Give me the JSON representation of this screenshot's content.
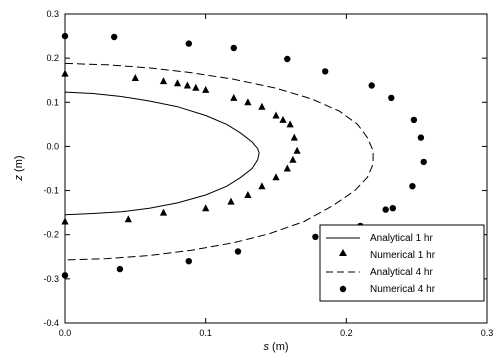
{
  "chart_data": {
    "type": "scatter",
    "title": "",
    "xlabel": {
      "var": "s",
      "unit": " (m)"
    },
    "ylabel": {
      "var": "z",
      "unit": " (m)"
    },
    "xlim": [
      0,
      0.3
    ],
    "ylim": [
      -0.4,
      0.3
    ],
    "x_ticks": [
      "0.0",
      "0.1",
      "0.2",
      "0.3"
    ],
    "y_ticks": [
      "-0.4",
      "-0.3",
      "-0.2",
      "-0.1",
      "0.0",
      "0.1",
      "0.2",
      "0.3"
    ],
    "x_tick_values": [
      0,
      0.1,
      0.2,
      0.3
    ],
    "y_tick_values": [
      -0.4,
      -0.3,
      -0.2,
      -0.1,
      0.0,
      0.1,
      0.2,
      0.3
    ],
    "grid": false,
    "legend_position": "bottom-right",
    "series": [
      {
        "name": "Analytical 1 hr",
        "style": "solid-line",
        "x": [
          0.0,
          0.02,
          0.04,
          0.06,
          0.08,
          0.1,
          0.115,
          0.125,
          0.133,
          0.137,
          0.138,
          0.137,
          0.133,
          0.125,
          0.115,
          0.1,
          0.08,
          0.06,
          0.04,
          0.02,
          0.0
        ],
        "y": [
          0.123,
          0.12,
          0.113,
          0.103,
          0.09,
          0.07,
          0.05,
          0.03,
          0.01,
          -0.005,
          -0.015,
          -0.03,
          -0.05,
          -0.07,
          -0.09,
          -0.11,
          -0.128,
          -0.14,
          -0.148,
          -0.152,
          -0.155
        ]
      },
      {
        "name": "Numerical 1 hr",
        "style": "triangle-marker",
        "x": [
          0.0,
          0.05,
          0.07,
          0.08,
          0.087,
          0.093,
          0.1,
          0.12,
          0.13,
          0.14,
          0.15,
          0.155,
          0.16,
          0.163,
          0.165,
          0.162,
          0.158,
          0.15,
          0.14,
          0.13,
          0.118,
          0.1,
          0.07,
          0.045,
          0.0
        ],
        "y": [
          0.165,
          0.155,
          0.148,
          0.143,
          0.138,
          0.133,
          0.128,
          0.11,
          0.1,
          0.09,
          0.07,
          0.06,
          0.05,
          0.02,
          -0.01,
          -0.03,
          -0.05,
          -0.07,
          -0.09,
          -0.11,
          -0.125,
          -0.14,
          -0.15,
          -0.165,
          -0.17
        ]
      },
      {
        "name": "Analytical 4 hr",
        "style": "dashed-line",
        "x": [
          0.0,
          0.03,
          0.06,
          0.09,
          0.12,
          0.15,
          0.175,
          0.195,
          0.208,
          0.215,
          0.219,
          0.219,
          0.215,
          0.206,
          0.19,
          0.17,
          0.145,
          0.12,
          0.09,
          0.06,
          0.03,
          0.0
        ],
        "y": [
          0.188,
          0.185,
          0.178,
          0.167,
          0.152,
          0.132,
          0.108,
          0.08,
          0.05,
          0.02,
          -0.01,
          -0.04,
          -0.07,
          -0.1,
          -0.135,
          -0.17,
          -0.198,
          -0.218,
          -0.235,
          -0.247,
          -0.254,
          -0.257
        ]
      },
      {
        "name": "Numerical 4 hr",
        "style": "circle-marker",
        "x": [
          0.0,
          0.035,
          0.088,
          0.12,
          0.158,
          0.185,
          0.218,
          0.232,
          0.248,
          0.253,
          0.255,
          0.247,
          0.233,
          0.228,
          0.21,
          0.2,
          0.178,
          0.123,
          0.088,
          0.039,
          0.0
        ],
        "y": [
          0.25,
          0.248,
          0.233,
          0.223,
          0.198,
          0.17,
          0.138,
          0.11,
          0.06,
          0.02,
          -0.035,
          -0.09,
          -0.14,
          -0.143,
          -0.18,
          -0.19,
          -0.205,
          -0.238,
          -0.26,
          -0.278,
          -0.292
        ]
      }
    ]
  }
}
